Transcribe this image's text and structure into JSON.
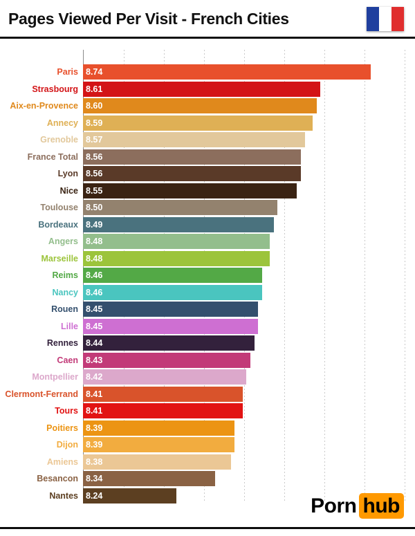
{
  "header": {
    "title": "Pages Viewed Per Visit - French Cities",
    "flag": {
      "name": "french-flag",
      "colors": [
        "#1F3F9E",
        "#FFFFFF",
        "#E02E2E"
      ]
    }
  },
  "chart_data": {
    "type": "bar",
    "orientation": "horizontal",
    "title": "Pages Viewed Per Visit - French Cities",
    "xlabel": "",
    "ylabel": "",
    "xlim": [
      8.0,
      8.8
    ],
    "gridline_step": 0.1,
    "grid": true,
    "value_label_color": "#FFFFFF",
    "bars": [
      {
        "label": "Paris",
        "value": 8.74,
        "color": "#E8502C"
      },
      {
        "label": "Strasbourg",
        "value": 8.61,
        "color": "#D31417"
      },
      {
        "label": "Aix-en-Provence",
        "value": 8.6,
        "color": "#E0891C"
      },
      {
        "label": "Annecy",
        "value": 8.59,
        "color": "#DFB055"
      },
      {
        "label": "Grenoble",
        "value": 8.57,
        "color": "#E2C89B"
      },
      {
        "label": "France Total",
        "value": 8.56,
        "color": "#8C6E5D"
      },
      {
        "label": "Lyon",
        "value": 8.56,
        "color": "#5A3A28"
      },
      {
        "label": "Nice",
        "value": 8.55,
        "color": "#3A2313"
      },
      {
        "label": "Toulouse",
        "value": 8.5,
        "color": "#93826E"
      },
      {
        "label": "Bordeaux",
        "value": 8.49,
        "color": "#4A727E"
      },
      {
        "label": "Angers",
        "value": 8.48,
        "color": "#93BE8C"
      },
      {
        "label": "Marseille",
        "value": 8.48,
        "color": "#9CC43B"
      },
      {
        "label": "Reims",
        "value": 8.46,
        "color": "#53A946"
      },
      {
        "label": "Nancy",
        "value": 8.46,
        "color": "#4AC5BF"
      },
      {
        "label": "Rouen",
        "value": 8.45,
        "color": "#34506E"
      },
      {
        "label": "Lille",
        "value": 8.45,
        "color": "#CE6FD2"
      },
      {
        "label": "Rennes",
        "value": 8.44,
        "color": "#33213C"
      },
      {
        "label": "Caen",
        "value": 8.43,
        "color": "#C23A78"
      },
      {
        "label": "Montpellier",
        "value": 8.42,
        "color": "#DCA8CB"
      },
      {
        "label": "Clermont-Ferrand",
        "value": 8.41,
        "color": "#D9532B"
      },
      {
        "label": "Tours",
        "value": 8.41,
        "color": "#E21313"
      },
      {
        "label": "Poitiers",
        "value": 8.39,
        "color": "#EC9413"
      },
      {
        "label": "Dijon",
        "value": 8.39,
        "color": "#F2AC3F"
      },
      {
        "label": "Amiens",
        "value": 8.38,
        "color": "#EBC795"
      },
      {
        "label": "Besancon",
        "value": 8.34,
        "color": "#8A6244"
      },
      {
        "label": "Nantes",
        "value": 8.24,
        "color": "#5C3F21"
      }
    ]
  },
  "footer": {
    "logo": {
      "part1": "Porn",
      "part2": "hub",
      "accent": "#FF9900"
    }
  }
}
